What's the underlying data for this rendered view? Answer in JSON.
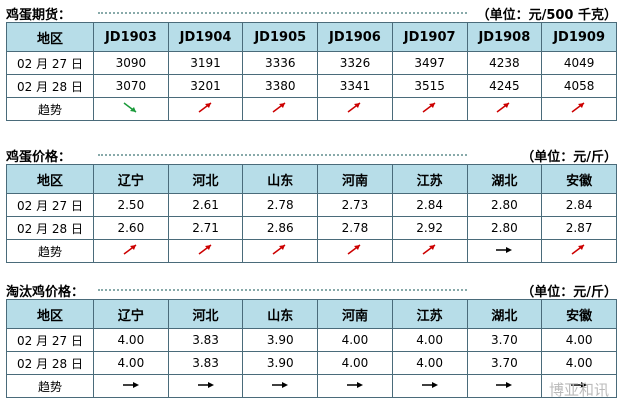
{
  "sections": [
    {
      "title": "鸡蛋期货：",
      "unit": "（单位：元/500 千克）",
      "header": [
        "地区",
        "JD1903",
        "JD1904",
        "JD1905",
        "JD1906",
        "JD1907",
        "JD1908",
        "JD1909"
      ],
      "rows": [
        [
          "02 月 27 日",
          "3090",
          "3191",
          "3336",
          "3326",
          "3497",
          "4238",
          "4049"
        ],
        [
          "02 月 28 日",
          "3070",
          "3201",
          "3380",
          "3341",
          "3515",
          "4245",
          "4058"
        ]
      ],
      "trend_label": "趋势"
    },
    {
      "title": "鸡蛋价格：",
      "unit": "（单位：元/斤）",
      "header": [
        "地区",
        "辽宁",
        "河北",
        "山东",
        "河南",
        "江苏",
        "湖北",
        "安徽"
      ],
      "rows": [
        [
          "02 月 27 日",
          "2.50",
          "2.61",
          "2.78",
          "2.73",
          "2.84",
          "2.80",
          "2.84"
        ],
        [
          "02 月 28 日",
          "2.60",
          "2.71",
          "2.86",
          "2.78",
          "2.92",
          "2.80",
          "2.87"
        ]
      ],
      "trend_label": "趋势"
    },
    {
      "title": "淘汰鸡价格：",
      "unit": "（单位：元/斤）",
      "header": [
        "地区",
        "辽宁",
        "河北",
        "山东",
        "河南",
        "江苏",
        "湖北",
        "安徽"
      ],
      "rows": [
        [
          "02 月 27 日",
          "4.00",
          "3.83",
          "3.90",
          "4.00",
          "4.00",
          "3.70",
          "4.00"
        ],
        [
          "02 月 28 日",
          "4.00",
          "3.83",
          "3.90",
          "4.00",
          "4.00",
          "3.70",
          "4.00"
        ]
      ],
      "trend_label": "趋势"
    }
  ],
  "watermark": "博亚和讯"
}
